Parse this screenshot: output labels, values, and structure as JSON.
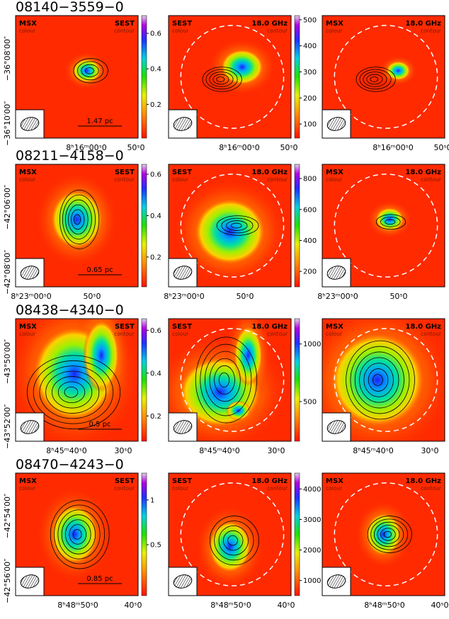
{
  "rows": [
    {
      "source": "08140−3559−0",
      "panels": [
        {
          "colour_label": "MSX",
          "colour_sub": "colour",
          "contour_label": "SEST",
          "contour_sub": "contour"
        },
        {
          "colour_label": "SEST",
          "colour_sub": "colour",
          "contour_label": "18.0 GHz",
          "contour_sub": "contour"
        },
        {
          "colour_label": "MSX",
          "colour_sub": "colour",
          "contour_label": "18.0 GHz",
          "contour_sub": "contour"
        }
      ],
      "scale_bar": "1.47 pc",
      "colorbars": [
        {
          "ticks": [
            0.6,
            0.4,
            0.2
          ],
          "clim": [
            0.01,
            0.7
          ]
        },
        {
          "ticks": [
            500,
            400,
            300,
            200,
            100
          ],
          "clim": [
            46,
            516
          ]
        }
      ],
      "dec_labels": [
        "−36°08′00″",
        "−36°10′00″"
      ],
      "ra_labels": [
        [
          "8ʰ16ᵐ00ˢ0",
          "50ˢ0"
        ],
        [
          "8ʰ16ᵐ00ˢ0",
          "50ˢ0"
        ],
        [
          "8ʰ16ᵐ00ˢ0",
          "50ˢ0"
        ]
      ]
    },
    {
      "source": "08211−4158−0",
      "panels": [
        {
          "colour_label": "MSX",
          "colour_sub": "colour",
          "contour_label": "SEST",
          "contour_sub": "contour"
        },
        {
          "colour_label": "SEST",
          "colour_sub": "colour",
          "contour_label": "18.0 GHz",
          "contour_sub": "contour"
        },
        {
          "colour_label": "MSX",
          "colour_sub": "colour",
          "contour_label": "18.0 GHz",
          "contour_sub": "contour"
        }
      ],
      "scale_bar": "0.65 pc",
      "colorbars": [
        {
          "ticks": [
            0.6,
            0.4,
            0.2
          ],
          "clim": [
            0.056,
            0.648
          ]
        },
        {
          "ticks": [
            800,
            600,
            400,
            200
          ],
          "clim": [
            100,
            892
          ]
        }
      ],
      "dec_labels": [
        "−42°06′00″",
        "−42°08′00″"
      ],
      "ra_labels": [
        [
          "8ʰ23ᵐ00ˢ0",
          "50ˢ0"
        ],
        [
          "8ʰ23ᵐ00ˢ0",
          "50ˢ0"
        ],
        [
          "8ʰ23ᵐ00ˢ0",
          "50ˢ0"
        ]
      ]
    },
    {
      "source": "08438−4340−0",
      "panels": [
        {
          "colour_label": "MSX",
          "colour_sub": "colour",
          "contour_label": "SEST",
          "contour_sub": "contour"
        },
        {
          "colour_label": "SEST",
          "colour_sub": "colour",
          "contour_label": "18.0 GHz",
          "contour_sub": "contour"
        },
        {
          "colour_label": "MSX",
          "colour_sub": "colour",
          "contour_label": "18.0 GHz",
          "contour_sub": "contour"
        }
      ],
      "scale_bar": "0.5 pc",
      "colorbars": [
        {
          "ticks": [
            0.6,
            0.4,
            0.2
          ],
          "clim": [
            0.082,
            0.654
          ]
        },
        {
          "ticks": [
            1000,
            500
          ],
          "clim": [
            156,
            1219
          ]
        }
      ],
      "dec_labels": [
        "−43°50′00″",
        "−43°52′00″"
      ],
      "ra_labels": [
        [
          "8ʰ45ᵐ40ˢ0",
          "30ˢ0"
        ],
        [
          "8ʰ45ᵐ40ˢ0",
          "30ˢ0"
        ],
        [
          "8ʰ45ᵐ40ˢ0",
          "30ˢ0"
        ]
      ]
    },
    {
      "source": "08470−4243−0",
      "panels": [
        {
          "colour_label": "MSX",
          "colour_sub": "colour",
          "contour_label": "SEST",
          "contour_sub": "contour"
        },
        {
          "colour_label": "SEST",
          "colour_sub": "colour",
          "contour_label": "18.0 GHz",
          "contour_sub": "contour"
        },
        {
          "colour_label": "MSX",
          "colour_sub": "colour",
          "contour_label": "18.0 GHz",
          "contour_sub": "contour"
        }
      ],
      "scale_bar": "0.85 pc",
      "colorbars": [
        {
          "ticks": [
            1,
            0.5
          ],
          "clim": [
            -0.07,
            1.3
          ]
        },
        {
          "ticks": [
            4000,
            3000,
            2000,
            1000
          ],
          "clim": [
            504,
            4520
          ]
        }
      ],
      "dec_labels": [
        "−42°54′00″",
        "−42°56′00″"
      ],
      "ra_labels": [
        [
          "8ʰ48ᵐ50ˢ0",
          "40ˢ0"
        ],
        [
          "8ʰ48ᵐ50ˢ0",
          "40ˢ0"
        ],
        [
          "8ʰ48ᵐ50ˢ0",
          "40ˢ0"
        ]
      ]
    }
  ]
}
